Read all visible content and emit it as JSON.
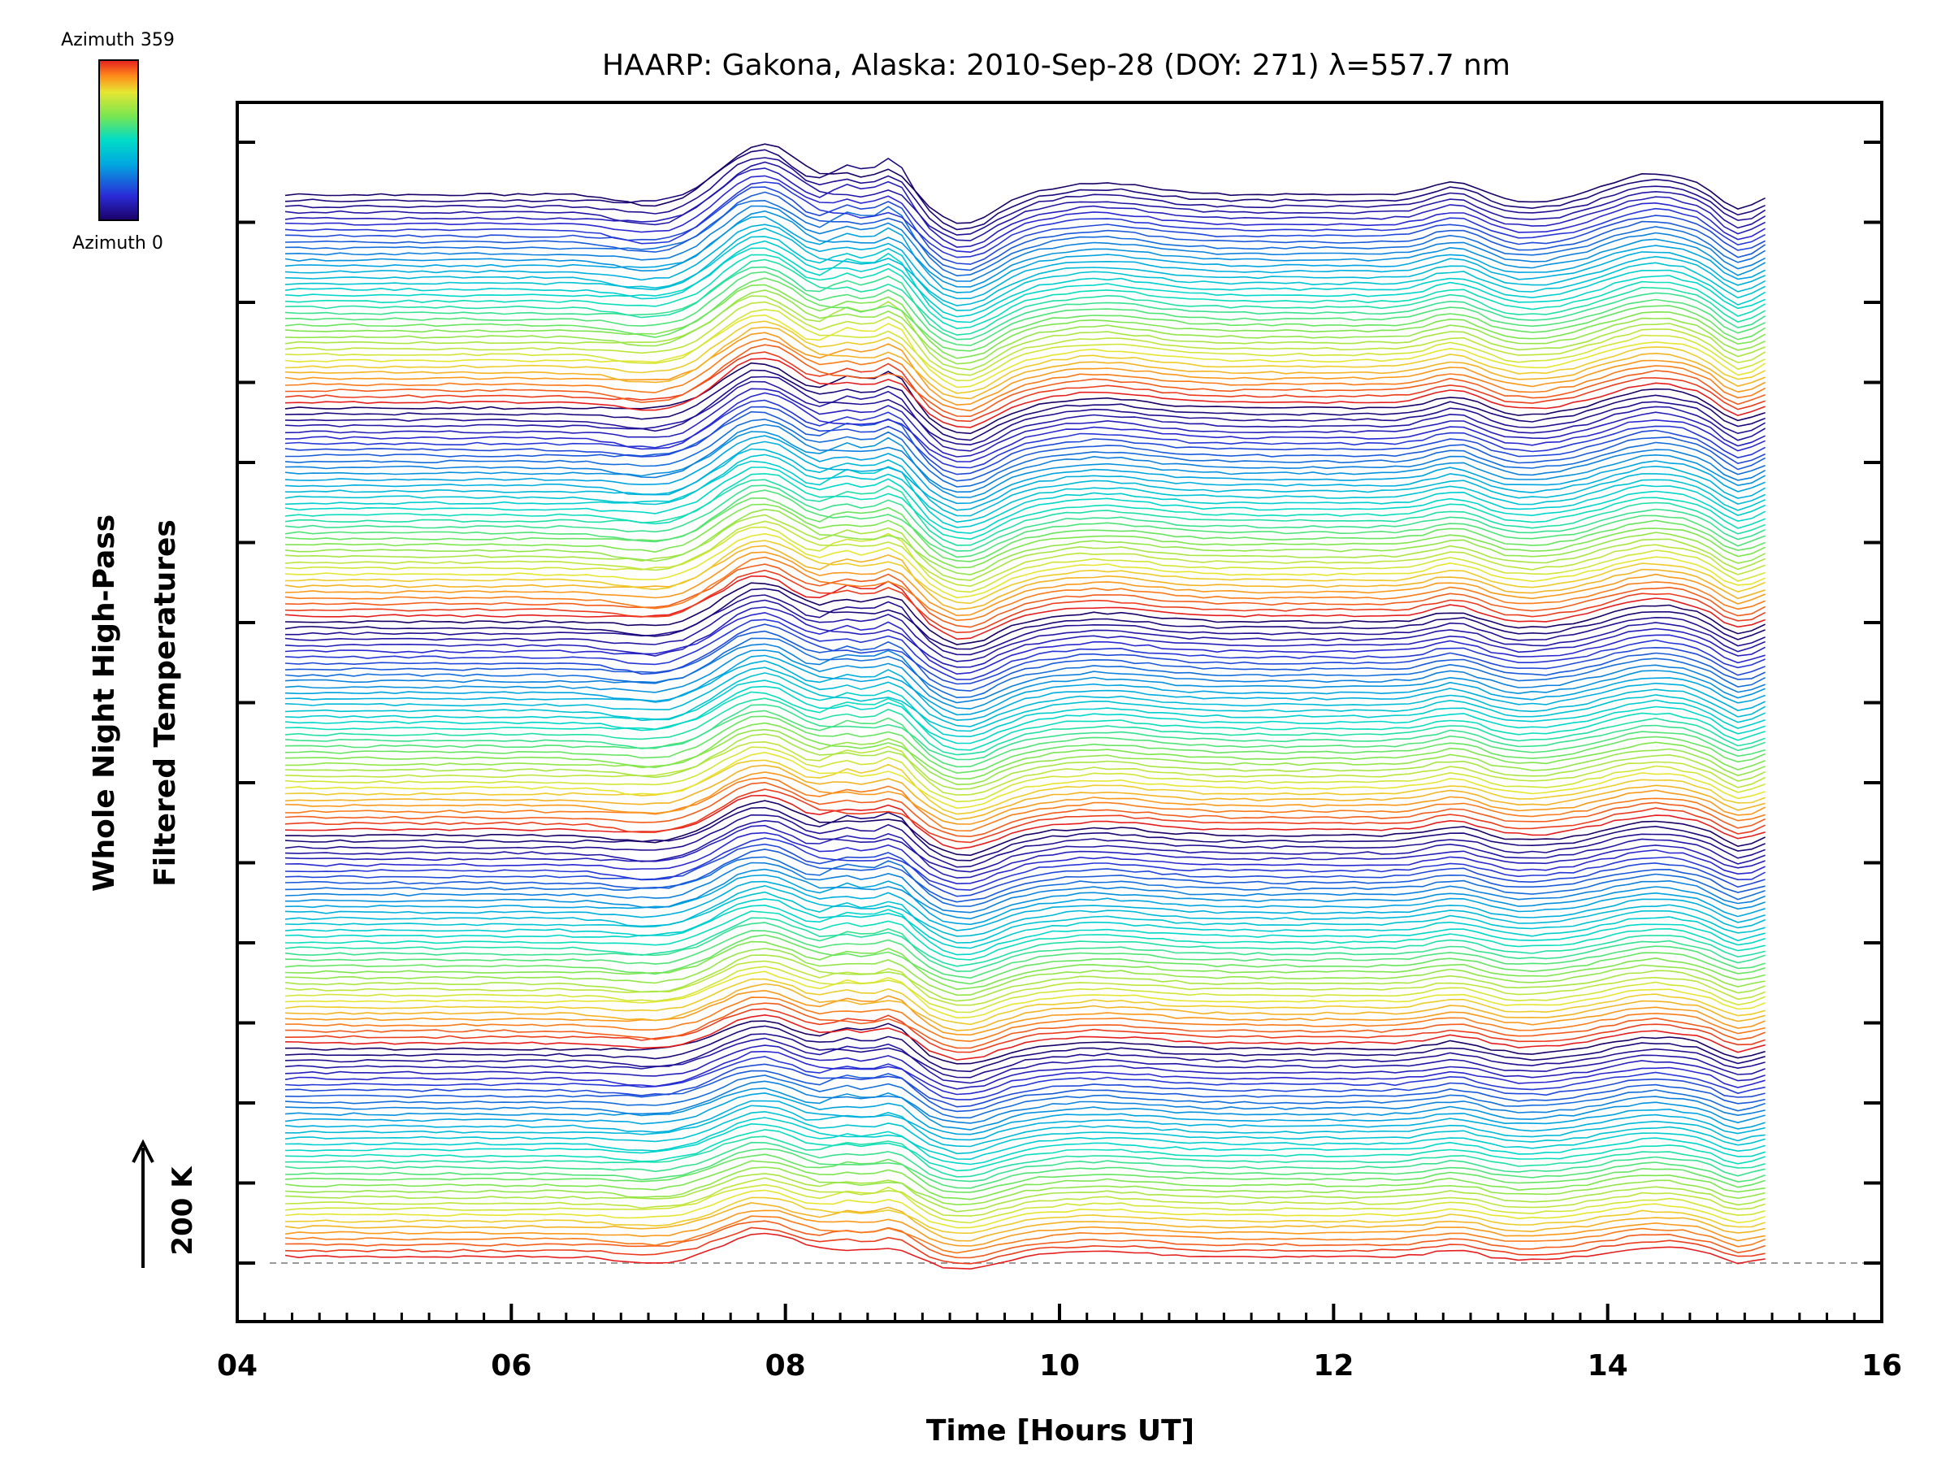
{
  "chart_data": {
    "type": "line",
    "title": "HAARP: Gakona,  Alaska: 2010-Sep-28 (DOY: 271) λ=557.7 nm",
    "xlabel": "Time [Hours UT]",
    "ylabel_line1": "Whole Night High-Pass",
    "ylabel_line2": "Filtered Temperatures",
    "xlim": [
      4,
      16
    ],
    "x_ticks": [
      "04",
      "06",
      "08",
      "10",
      "12",
      "14",
      "16"
    ],
    "x_start": 4.35,
    "x_end": 15.2,
    "scale_bar_label": "200 K",
    "colorbar": {
      "top_label": "Azimuth 359",
      "bottom_label": "Azimuth 0",
      "colors": [
        "#1a0066",
        "#2a2ad6",
        "#00a8e0",
        "#00dcc8",
        "#78e650",
        "#e6e632",
        "#ff8c1a",
        "#e61e1e"
      ]
    },
    "series_count": 180,
    "description_note": "",
    "baseline": "dashed grey reference line at lowest series"
  }
}
